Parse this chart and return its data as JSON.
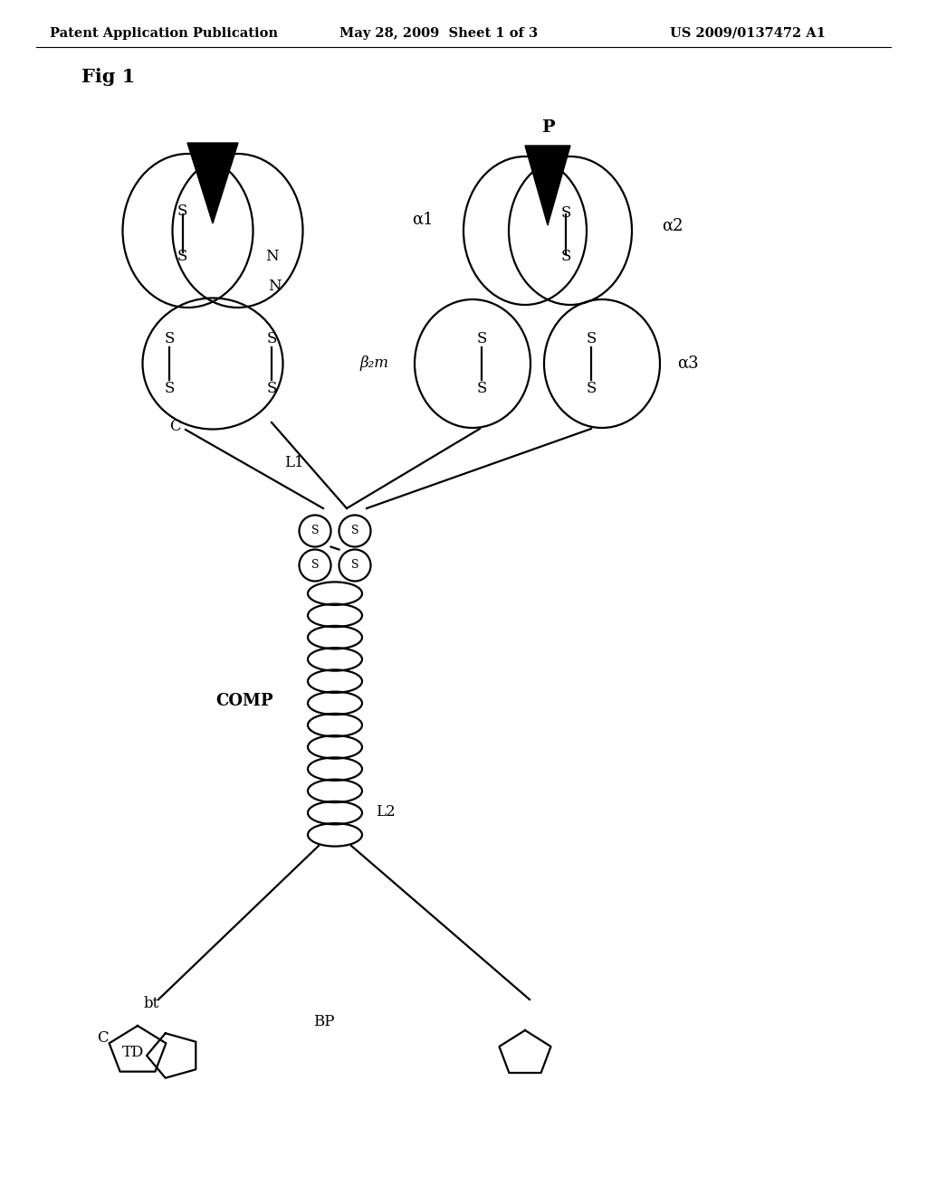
{
  "header_left": "Patent Application Publication",
  "header_mid": "May 28, 2009  Sheet 1 of 3",
  "header_right": "US 2009/0137472 A1",
  "fig_label": "Fig 1",
  "bg": "#ffffff",
  "lc": "#000000"
}
